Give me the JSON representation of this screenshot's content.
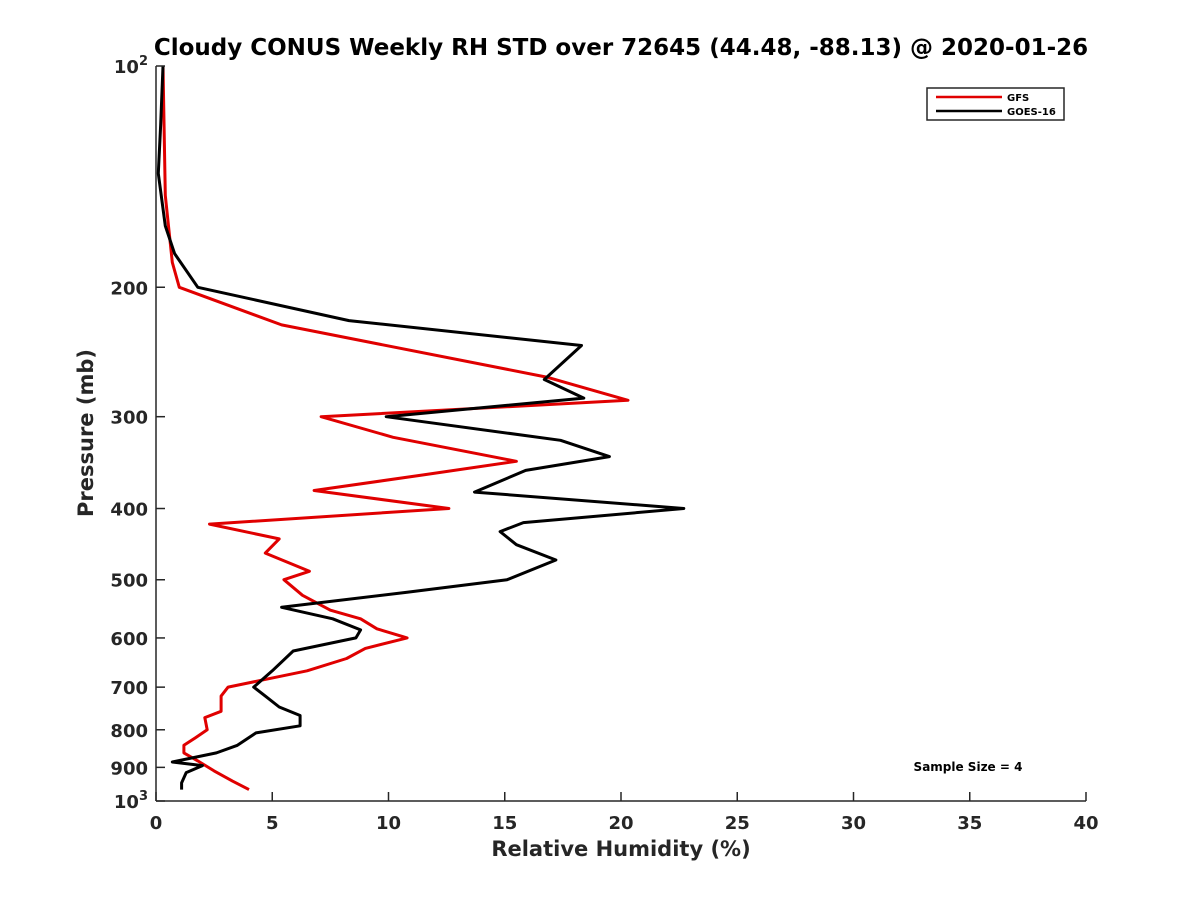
{
  "chart_data": {
    "type": "line",
    "title": "Cloudy CONUS Weekly RH STD over 72645 (44.48, -88.13) @ 2020-01-26",
    "xlabel": "Relative Humidity (%)",
    "ylabel": "Pressure (mb)",
    "xlim": [
      0,
      40
    ],
    "ylim": [
      100,
      1000
    ],
    "yscale": "log",
    "y_reversed": true,
    "grid": false,
    "legend_position": "top-right",
    "x_ticks": [
      0,
      5,
      10,
      15,
      20,
      25,
      30,
      35,
      40
    ],
    "x_tick_labels": [
      "0",
      "5",
      "10",
      "15",
      "20",
      "25",
      "30",
      "35",
      "40"
    ],
    "y_ticks": [
      100,
      200,
      300,
      400,
      500,
      600,
      700,
      800,
      900,
      1000
    ],
    "y_tick_labels": [
      {
        "base": "10",
        "exp": "2"
      },
      {
        "base": "200",
        "exp": ""
      },
      {
        "base": "300",
        "exp": ""
      },
      {
        "base": "400",
        "exp": ""
      },
      {
        "base": "500",
        "exp": ""
      },
      {
        "base": "600",
        "exp": ""
      },
      {
        "base": "700",
        "exp": ""
      },
      {
        "base": "800",
        "exp": ""
      },
      {
        "base": "900",
        "exp": ""
      },
      {
        "base": "10",
        "exp": "3"
      }
    ],
    "annotation": "Sample Size = 4",
    "series": [
      {
        "name": "GFS",
        "color": "#e00000",
        "points": [
          [
            0.3,
            100
          ],
          [
            0.4,
            150
          ],
          [
            0.7,
            185
          ],
          [
            1.0,
            200
          ],
          [
            5.4,
            225
          ],
          [
            16.8,
            265
          ],
          [
            20.3,
            285
          ],
          [
            7.1,
            300
          ],
          [
            10.2,
            320
          ],
          [
            15.5,
            345
          ],
          [
            11.5,
            360
          ],
          [
            6.8,
            378
          ],
          [
            12.6,
            400
          ],
          [
            2.3,
            420
          ],
          [
            5.3,
            440
          ],
          [
            4.7,
            460
          ],
          [
            6.6,
            487
          ],
          [
            5.5,
            500
          ],
          [
            6.3,
            525
          ],
          [
            7.5,
            550
          ],
          [
            8.8,
            565
          ],
          [
            9.5,
            583
          ],
          [
            10.8,
            600
          ],
          [
            9.0,
            620
          ],
          [
            8.2,
            640
          ],
          [
            6.5,
            665
          ],
          [
            3.1,
            700
          ],
          [
            2.8,
            720
          ],
          [
            2.8,
            755
          ],
          [
            2.1,
            770
          ],
          [
            2.2,
            800
          ],
          [
            1.7,
            820
          ],
          [
            1.2,
            840
          ],
          [
            1.2,
            860
          ],
          [
            1.8,
            882
          ],
          [
            2.5,
            910
          ],
          [
            3.3,
            940
          ],
          [
            4.0,
            965
          ]
        ]
      },
      {
        "name": "GOES-16",
        "color": "#000000",
        "points": [
          [
            0.3,
            100
          ],
          [
            0.2,
            120
          ],
          [
            0.1,
            140
          ],
          [
            0.4,
            165
          ],
          [
            0.8,
            180
          ],
          [
            1.8,
            200
          ],
          [
            8.3,
            222
          ],
          [
            18.3,
            240
          ],
          [
            16.7,
            267
          ],
          [
            18.4,
            283
          ],
          [
            9.9,
            300
          ],
          [
            17.4,
            323
          ],
          [
            19.5,
            340
          ],
          [
            15.9,
            355
          ],
          [
            13.7,
            380
          ],
          [
            22.7,
            400
          ],
          [
            15.8,
            418
          ],
          [
            14.8,
            430
          ],
          [
            15.5,
            448
          ],
          [
            17.2,
            470
          ],
          [
            15.1,
            500
          ],
          [
            10.8,
            520
          ],
          [
            5.4,
            545
          ],
          [
            7.6,
            565
          ],
          [
            8.8,
            585
          ],
          [
            8.6,
            600
          ],
          [
            5.9,
            625
          ],
          [
            5.0,
            665
          ],
          [
            4.2,
            700
          ],
          [
            4.7,
            720
          ],
          [
            5.3,
            745
          ],
          [
            6.2,
            765
          ],
          [
            6.2,
            790
          ],
          [
            4.3,
            808
          ],
          [
            3.5,
            840
          ],
          [
            2.6,
            860
          ],
          [
            0.7,
            885
          ],
          [
            2.0,
            895
          ],
          [
            1.3,
            915
          ],
          [
            1.1,
            945
          ],
          [
            1.1,
            965
          ]
        ]
      }
    ]
  }
}
